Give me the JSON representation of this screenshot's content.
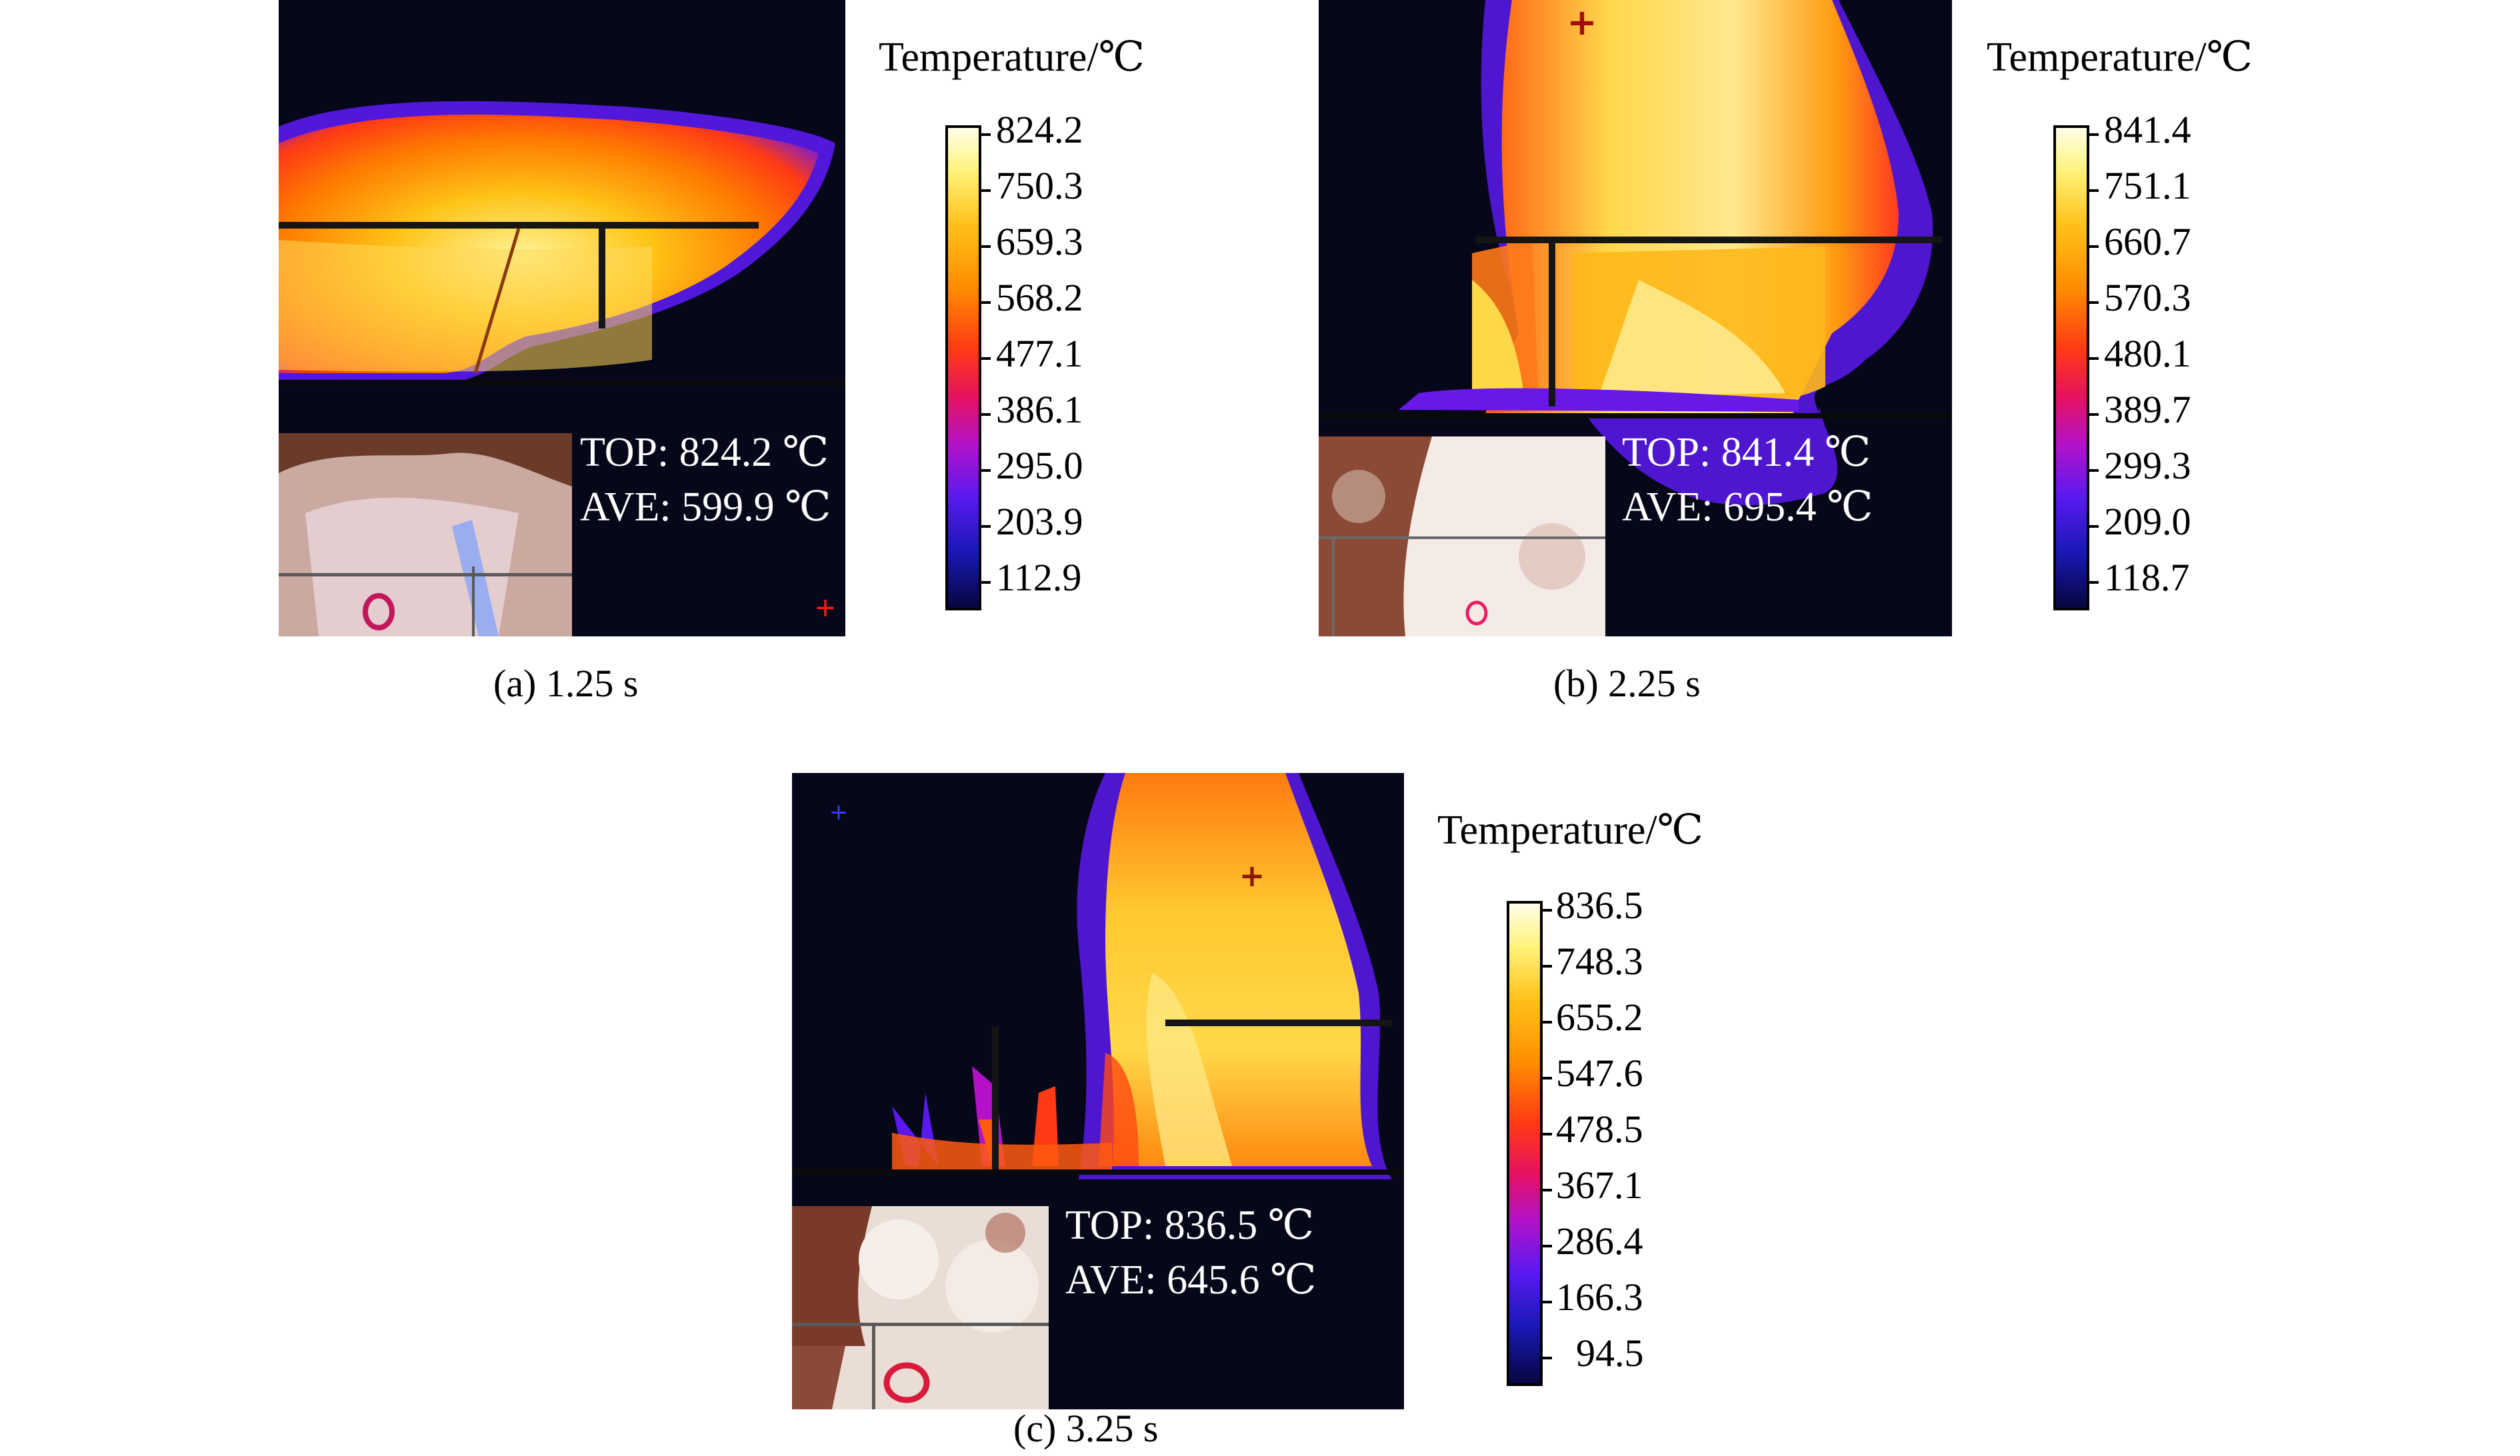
{
  "panels": [
    {
      "caption": "(a) 1.25 s",
      "top": "TOP: 824.2 ℃",
      "ave": "AVE: 599.9 ℃",
      "colorbar_title": "Temperature/℃",
      "ticks": [
        "824.2",
        "750.3",
        "659.3",
        "568.2",
        "477.1",
        "386.1",
        "295.0",
        "203.9",
        "112.9"
      ]
    },
    {
      "caption": "(b) 2.25 s",
      "top": "TOP: 841.4 ℃",
      "ave": "AVE: 695.4 ℃",
      "colorbar_title": "Temperature/℃",
      "ticks": [
        "841.4",
        "751.1",
        "660.7",
        "570.3",
        "480.1",
        "389.7",
        "299.3",
        "209.0",
        "118.7"
      ]
    },
    {
      "caption": "(c) 3.25 s",
      "top": "TOP: 836.5 ℃",
      "ave": "AVE: 645.6 ℃",
      "colorbar_title": "Temperature/℃",
      "ticks": [
        "836.5",
        "748.3",
        "655.2",
        "547.6",
        "478.5",
        "367.1",
        "286.4",
        "166.3",
        "94.5"
      ]
    }
  ],
  "colors": {
    "background": "#07071a",
    "text_on_image": "#ffffff",
    "marker": "#ff1a1a"
  }
}
